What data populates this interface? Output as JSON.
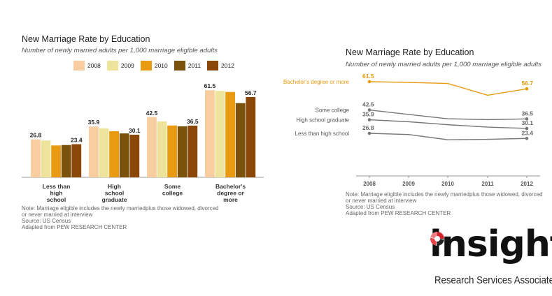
{
  "chart_data": [
    {
      "type": "bar",
      "title": "New Marriage Rate by Education",
      "subtitle": "Number of newly married adults per 1,000 marriage eligible adults",
      "categories": [
        [
          "Less than",
          "high",
          "school"
        ],
        [
          "High",
          "school",
          "graduate"
        ],
        [
          "Some",
          "college"
        ],
        [
          "Bachelor's",
          "degree or",
          "more"
        ]
      ],
      "series": [
        {
          "name": "2008",
          "color": "#f8cda0",
          "values": [
            26.8,
            35.9,
            42.5,
            61.5
          ]
        },
        {
          "name": "2009",
          "color": "#ede39a",
          "values": [
            26.0,
            34.6,
            39.5,
            61.0
          ]
        },
        {
          "name": "2010",
          "color": "#e89a10",
          "values": [
            22.5,
            32.6,
            36.6,
            60.3
          ]
        },
        {
          "name": "2011",
          "color": "#7a520c",
          "values": [
            22.8,
            31.0,
            36.0,
            52.4
          ]
        },
        {
          "name": "2012",
          "color": "#8a4708",
          "values": [
            23.4,
            30.1,
            36.5,
            56.7
          ]
        }
      ],
      "data_labels": [
        {
          "category": 0,
          "series": 0,
          "text": "26.8"
        },
        {
          "category": 0,
          "series": 4,
          "text": "23.4"
        },
        {
          "category": 1,
          "series": 0,
          "text": "35.9"
        },
        {
          "category": 1,
          "series": 4,
          "text": "30.1"
        },
        {
          "category": 2,
          "series": 0,
          "text": "42.5"
        },
        {
          "category": 2,
          "series": 4,
          "text": "36.5"
        },
        {
          "category": 3,
          "series": 0,
          "text": "61.5"
        },
        {
          "category": 3,
          "series": 4,
          "text": "56.7"
        }
      ],
      "ylim": [
        0,
        70
      ],
      "legend_position": "top",
      "notes": [
        "Note: Marriage eligible includes the newly marriedplus those widowed, divorced",
        "or never married at interview",
        "Source: US Census",
        "Adapted from PEW RESEARCH CENTER"
      ]
    },
    {
      "type": "line",
      "title": "New Marriage Rate by Education",
      "subtitle": "Number of newly married adults per 1,000 marriage eligible adults",
      "x": [
        "2008",
        "2009",
        "2010",
        "2011",
        "2012"
      ],
      "series": [
        {
          "name": "Bachelor's degree or more",
          "color": "#e89a10",
          "values": [
            61.5,
            61.0,
            60.3,
            52.4,
            56.7
          ],
          "start_label": "61.5",
          "end_label": "56.7"
        },
        {
          "name": "Some college",
          "color": "#777777",
          "values": [
            42.5,
            39.5,
            36.6,
            36.0,
            36.5
          ],
          "start_label": "42.5",
          "end_label": "36.5"
        },
        {
          "name": "High school graduate",
          "color": "#777777",
          "values": [
            35.9,
            34.6,
            32.6,
            31.0,
            30.1
          ],
          "start_label": "35.9",
          "end_label": "30.1"
        },
        {
          "name": "Less than high school",
          "color": "#777777",
          "values": [
            26.8,
            26.0,
            22.5,
            22.8,
            23.4
          ],
          "start_label": "26.8",
          "end_label": "23.4"
        }
      ],
      "ylim": [
        0,
        70
      ],
      "notes": [
        "Note: Marriage eligible includes the newly marriedplus those widowed, divorced",
        "or never married at interview",
        "Source: US Census",
        "Adapted from PEW RESEARCH CENTER"
      ]
    }
  ],
  "logo": {
    "word": "insight",
    "tagline": "Research Services Associated"
  }
}
